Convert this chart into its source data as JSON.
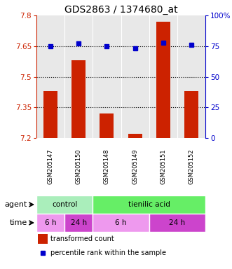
{
  "title": "GDS2863 / 1374680_at",
  "samples": [
    "GSM205147",
    "GSM205150",
    "GSM205148",
    "GSM205149",
    "GSM205151",
    "GSM205152"
  ],
  "bar_values": [
    7.43,
    7.58,
    7.32,
    7.22,
    7.77,
    7.43
  ],
  "dot_values": [
    75,
    77,
    75,
    73,
    78,
    76
  ],
  "ylim_left": [
    7.2,
    7.8
  ],
  "ylim_right": [
    0,
    100
  ],
  "yticks_left": [
    7.2,
    7.35,
    7.5,
    7.65,
    7.8
  ],
  "ytick_labels_left": [
    "7.2",
    "7.35",
    "7.5",
    "7.65",
    "7.8"
  ],
  "yticks_right": [
    0,
    25,
    50,
    75,
    100
  ],
  "ytick_labels_right": [
    "0",
    "25",
    "50",
    "75",
    "100%"
  ],
  "hlines": [
    7.35,
    7.5,
    7.65
  ],
  "bar_color": "#cc2200",
  "dot_color": "#0000cc",
  "bar_width": 0.5,
  "agent_groups": [
    {
      "label": "control",
      "span": [
        0,
        2
      ],
      "color": "#aaeebb"
    },
    {
      "label": "tienilic acid",
      "span": [
        2,
        6
      ],
      "color": "#66ee66"
    }
  ],
  "time_groups": [
    {
      "label": "6 h",
      "span": [
        0,
        1
      ],
      "color": "#ee99ee"
    },
    {
      "label": "24 h",
      "span": [
        1,
        2
      ],
      "color": "#cc44cc"
    },
    {
      "label": "6 h",
      "span": [
        2,
        4
      ],
      "color": "#ee99ee"
    },
    {
      "label": "24 h",
      "span": [
        4,
        6
      ],
      "color": "#cc44cc"
    }
  ],
  "legend_bar_label": "transformed count",
  "legend_dot_label": "percentile rank within the sample",
  "agent_label": "agent",
  "time_label": "time",
  "title_fontsize": 10,
  "tick_fontsize": 7.5,
  "label_fontsize": 8,
  "background_color": "#ffffff",
  "plot_bg_color": "#e8e8e8",
  "sample_bg_color": "#cccccc"
}
